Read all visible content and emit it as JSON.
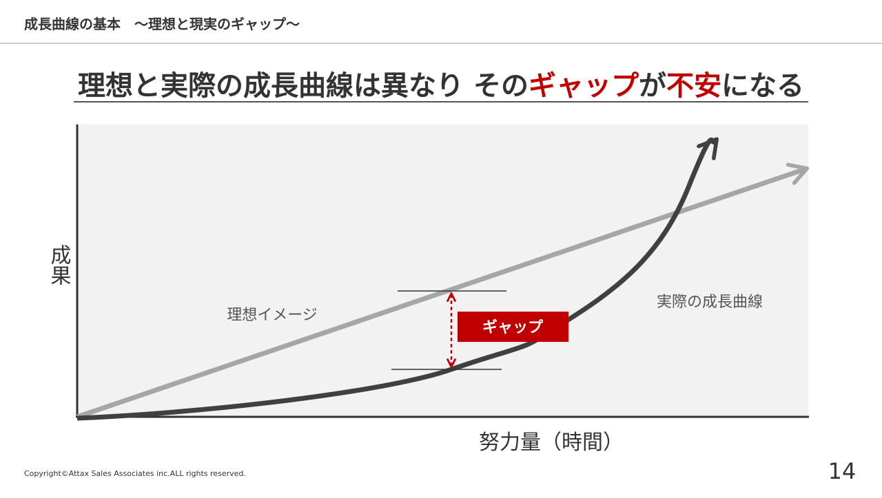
{
  "header": {
    "title": "成長曲線の基本　～理想と現実のギャップ～"
  },
  "heading": {
    "segments": [
      {
        "text": "理想と実際の成長曲線は異なり その",
        "color": "#333333"
      },
      {
        "text": "ギャップ",
        "color": "#c00000"
      },
      {
        "text": "が",
        "color": "#333333"
      },
      {
        "text": "不安",
        "color": "#c00000"
      },
      {
        "text": "になる",
        "color": "#333333"
      }
    ]
  },
  "diagram": {
    "y_axis_label": "成果",
    "x_axis_label": "努力量（時間）",
    "ideal_label": "理想イメージ",
    "actual_label": "実際の成長曲線",
    "gap_label": "ギャップ"
  },
  "footer": {
    "copyright": "Copyright©Attax Sales Associates inc.ALL rights reserved.",
    "page_number": "14"
  }
}
